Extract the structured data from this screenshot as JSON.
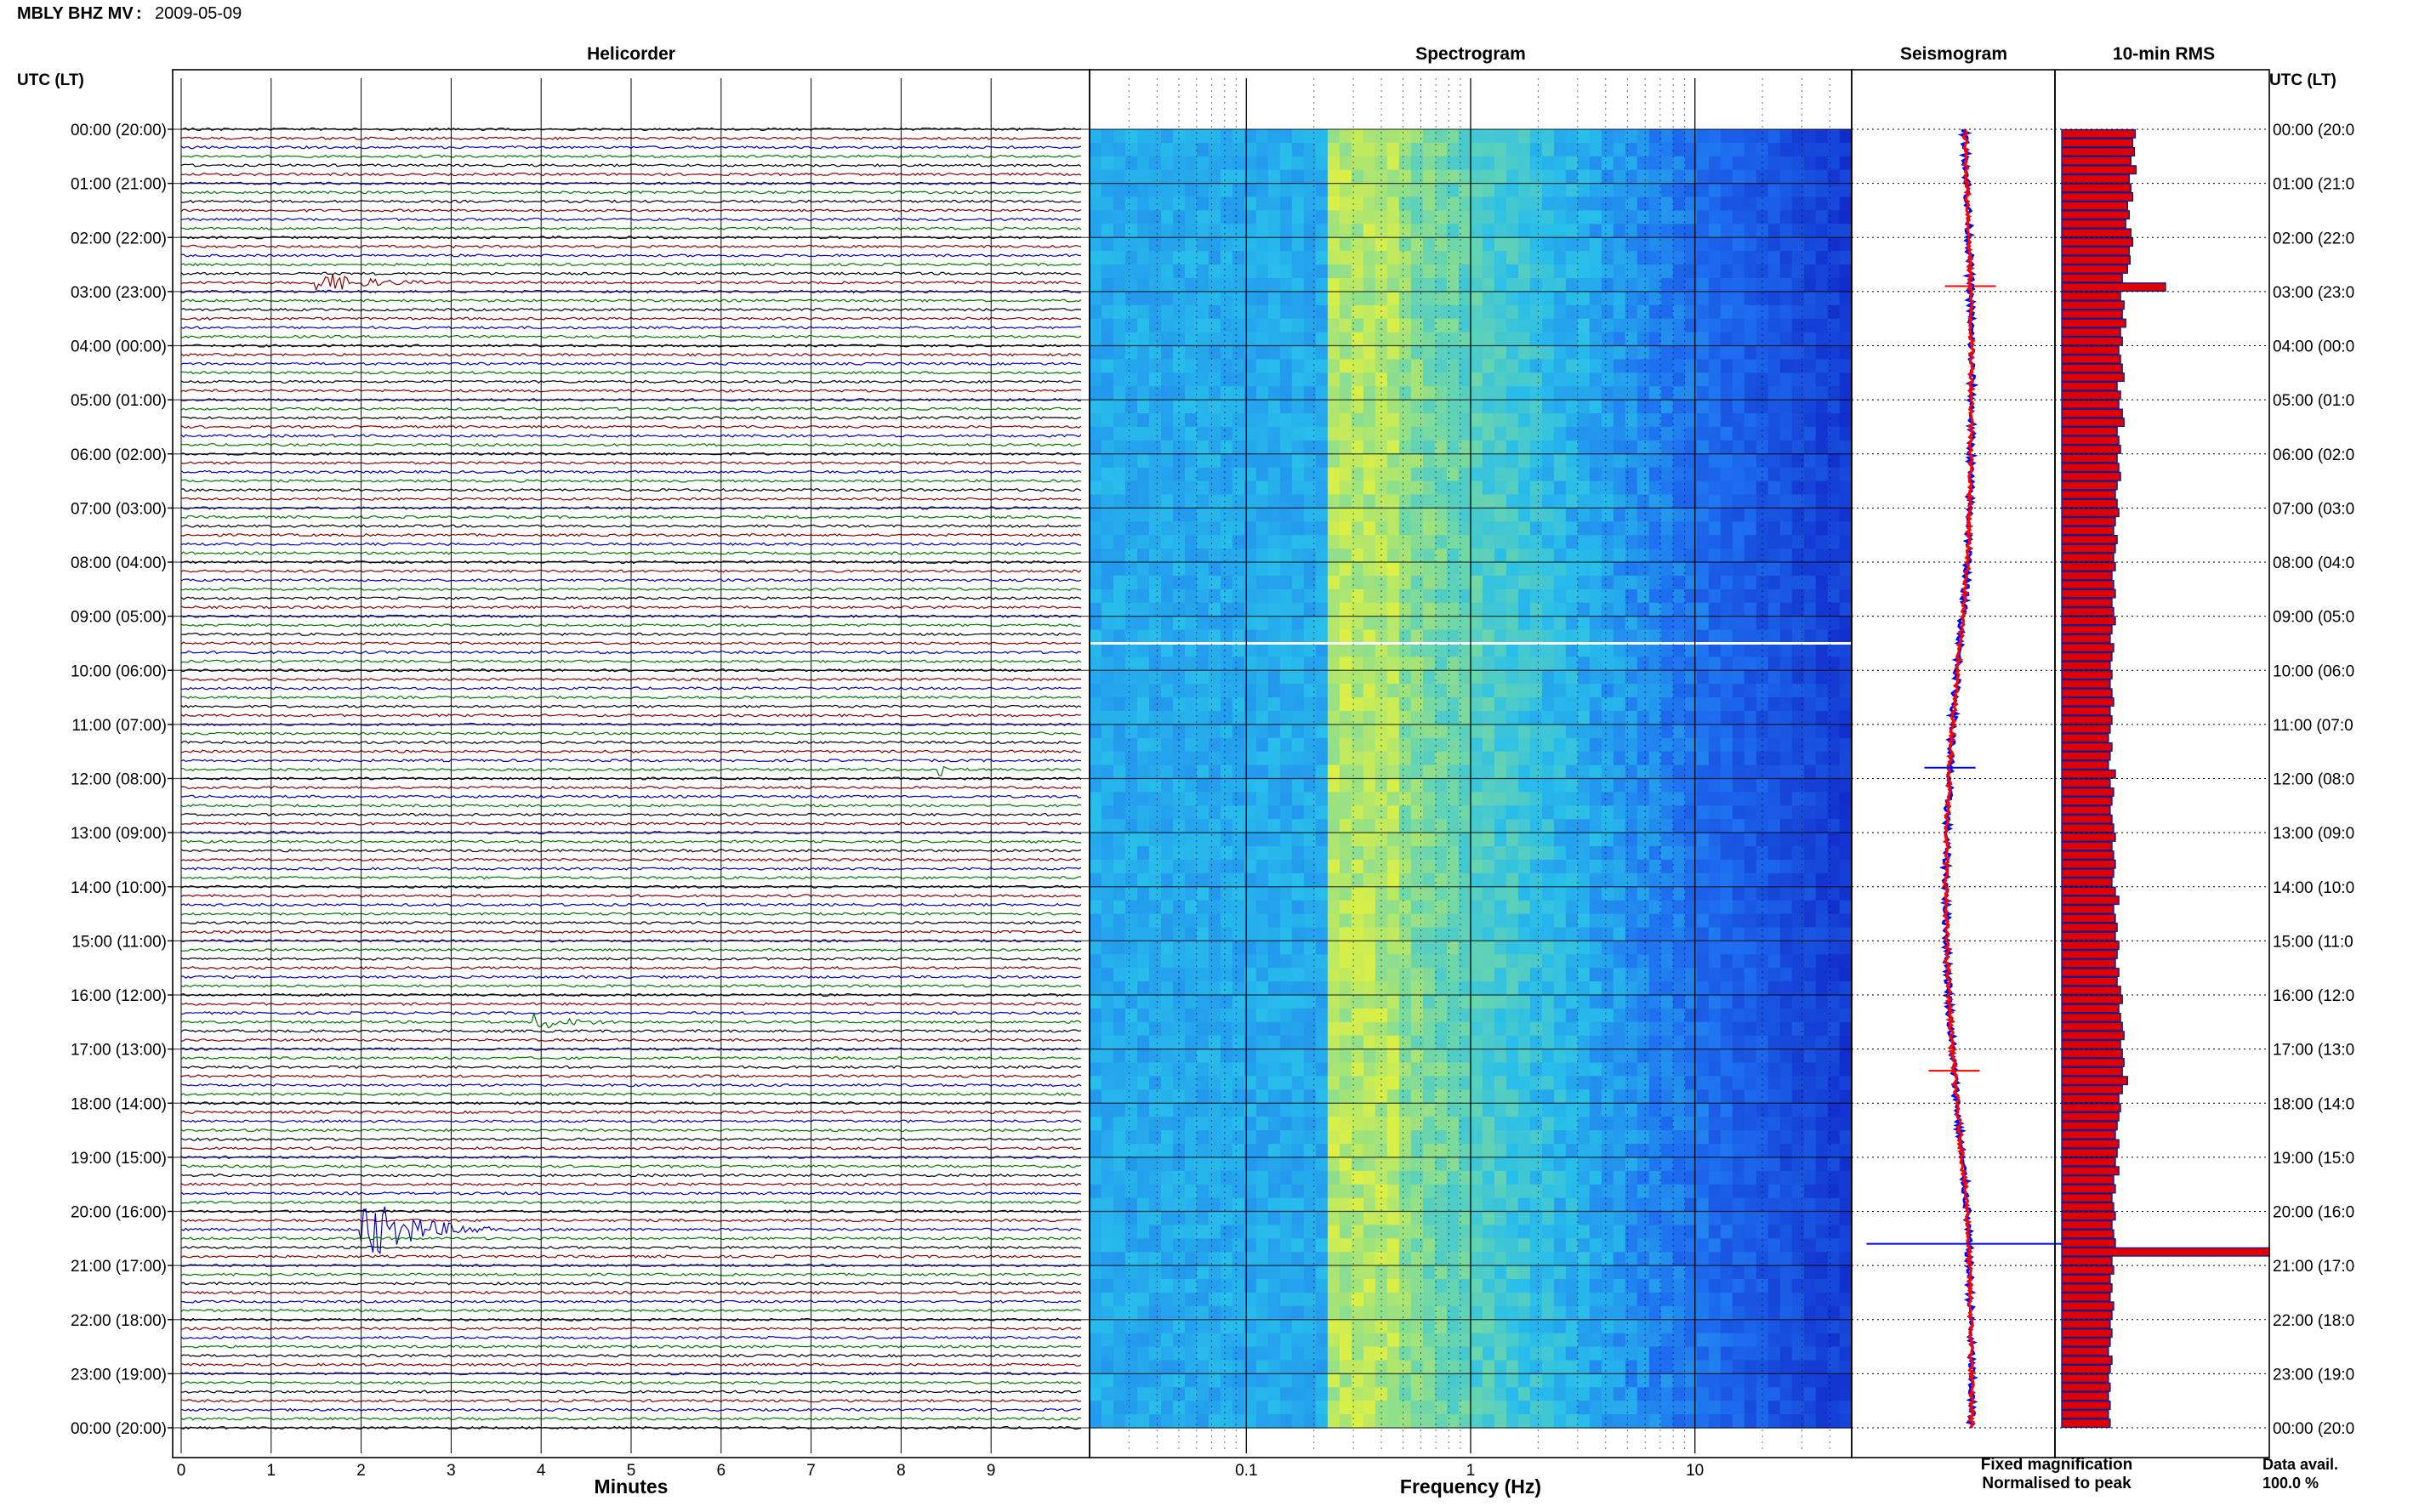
{
  "header": {
    "station": "MBLY BHZ MV",
    "separator": " : ",
    "date": "2009-05-09"
  },
  "panels": {
    "helicorder_title": "Helicorder",
    "spectrogram_title": "Spectrogram",
    "seismogram_title": "Seismogram",
    "rms_title": "10-min RMS",
    "left_axis_title": "UTC (LT)",
    "right_axis_title": "UTC (LT)"
  },
  "footer": {
    "minutes_label": "Minutes",
    "frequency_label": "Frequency (Hz)",
    "legend_fixed": "Fixed magnification",
    "legend_normalised": "Normalised to peak",
    "data_avail_label": "Data avail.",
    "data_avail_value": "100.0 %"
  },
  "colors": {
    "fixed": "#0000ff",
    "normalised": "#ff0000",
    "trace_cycle": [
      "#000000",
      "#8b0000",
      "#0000c0",
      "#007a00"
    ],
    "rms_bar": "#e00000",
    "rms_edge": "#1a1a8c"
  },
  "chart_data": {
    "type": "heatmap",
    "time_labels_left": [
      "00:00 (20:00)",
      "01:00 (21:00)",
      "02:00 (22:00)",
      "03:00 (23:00)",
      "04:00 (00:00)",
      "05:00 (01:00)",
      "06:00 (02:00)",
      "07:00 (03:00)",
      "08:00 (04:00)",
      "09:00 (05:00)",
      "10:00 (06:00)",
      "11:00 (07:00)",
      "12:00 (08:00)",
      "13:00 (09:00)",
      "14:00 (10:00)",
      "15:00 (11:00)",
      "16:00 (12:00)",
      "17:00 (13:00)",
      "18:00 (14:00)",
      "19:00 (15:00)",
      "20:00 (16:00)",
      "21:00 (17:00)",
      "22:00 (18:00)",
      "23:00 (19:00)",
      "00:00 (20:00)"
    ],
    "time_labels_right": [
      "00:00 (20:0",
      "01:00 (21:0",
      "02:00 (22:0",
      "03:00 (23:0",
      "04:00 (00:0",
      "05:00 (01:0",
      "06:00 (02:0",
      "07:00 (03:0",
      "08:00 (04:0",
      "09:00 (05:0",
      "10:00 (06:0",
      "11:00 (07:0",
      "12:00 (08:0",
      "13:00 (09:0",
      "14:00 (10:0",
      "15:00 (11:0",
      "16:00 (12:0",
      "17:00 (13:0",
      "18:00 (14:0",
      "19:00 (15:0",
      "20:00 (16:0",
      "21:00 (17:0",
      "22:00 (18:0",
      "23:00 (19:0",
      "00:00 (20:0"
    ],
    "helicorder": {
      "x_ticks": [
        "0",
        "1",
        "2",
        "3",
        "4",
        "5",
        "6",
        "7",
        "8",
        "9"
      ],
      "xlim": [
        0,
        10
      ],
      "rows": 144,
      "events": [
        {
          "row": 17,
          "minute": 1.5,
          "duration_min": 1.2,
          "amplitude": 2.0
        },
        {
          "row": 71,
          "minute": 8.4,
          "duration_min": 0.2,
          "amplitude": 2.5
        },
        {
          "row": 99,
          "minute": 3.9,
          "duration_min": 1.0,
          "amplitude": 1.4
        },
        {
          "row": 122,
          "minute": 2.0,
          "duration_min": 1.5,
          "amplitude": 6.0
        }
      ]
    },
    "spectrogram": {
      "x_scale": "log",
      "xlim_hz": [
        0.02,
        50
      ],
      "x_ticks": [
        "0.1",
        "1",
        "10"
      ],
      "x_tick_values": [
        0.1,
        1,
        10
      ],
      "peak_band_hz": [
        0.22,
        0.45
      ],
      "white_line_hour": 9.5
    },
    "seismogram": {
      "series": [
        {
          "name": "Fixed magnification",
          "type": "line"
        },
        {
          "name": "Normalised to peak",
          "type": "line"
        }
      ],
      "spikes_hour": [
        2.9,
        11.8,
        17.4,
        20.6
      ]
    },
    "rms": {
      "samples_per_hour": 6,
      "values": [
        0.85,
        0.82,
        0.84,
        0.8,
        0.86,
        0.78,
        0.8,
        0.82,
        0.76,
        0.78,
        0.74,
        0.8,
        0.82,
        0.78,
        0.79,
        0.76,
        0.7,
        1.2,
        0.68,
        0.72,
        0.7,
        0.74,
        0.68,
        0.7,
        0.66,
        0.68,
        0.7,
        0.72,
        0.64,
        0.68,
        0.66,
        0.7,
        0.72,
        0.64,
        0.66,
        0.68,
        0.64,
        0.66,
        0.68,
        0.64,
        0.62,
        0.64,
        0.66,
        0.62,
        0.6,
        0.64,
        0.62,
        0.6,
        0.62,
        0.58,
        0.6,
        0.62,
        0.58,
        0.6,
        0.62,
        0.58,
        0.56,
        0.6,
        0.58,
        0.56,
        0.58,
        0.56,
        0.58,
        0.6,
        0.56,
        0.58,
        0.56,
        0.54,
        0.58,
        0.56,
        0.54,
        0.62,
        0.56,
        0.6,
        0.58,
        0.56,
        0.58,
        0.6,
        0.62,
        0.58,
        0.6,
        0.62,
        0.6,
        0.58,
        0.62,
        0.66,
        0.6,
        0.62,
        0.64,
        0.62,
        0.66,
        0.64,
        0.62,
        0.66,
        0.64,
        0.68,
        0.7,
        0.66,
        0.68,
        0.7,
        0.72,
        0.68,
        0.7,
        0.72,
        0.7,
        0.76,
        0.7,
        0.66,
        0.68,
        0.66,
        0.64,
        0.62,
        0.66,
        0.64,
        0.62,
        0.66,
        0.6,
        0.62,
        0.58,
        0.6,
        0.62,
        0.58,
        0.6,
        0.62,
        2.4,
        0.58,
        0.6,
        0.56,
        0.58,
        0.56,
        0.6,
        0.58,
        0.56,
        0.58,
        0.56,
        0.54,
        0.58,
        0.56,
        0.54,
        0.56,
        0.54,
        0.56,
        0.54,
        0.56
      ],
      "xlim": [
        0,
        2.4
      ]
    }
  }
}
